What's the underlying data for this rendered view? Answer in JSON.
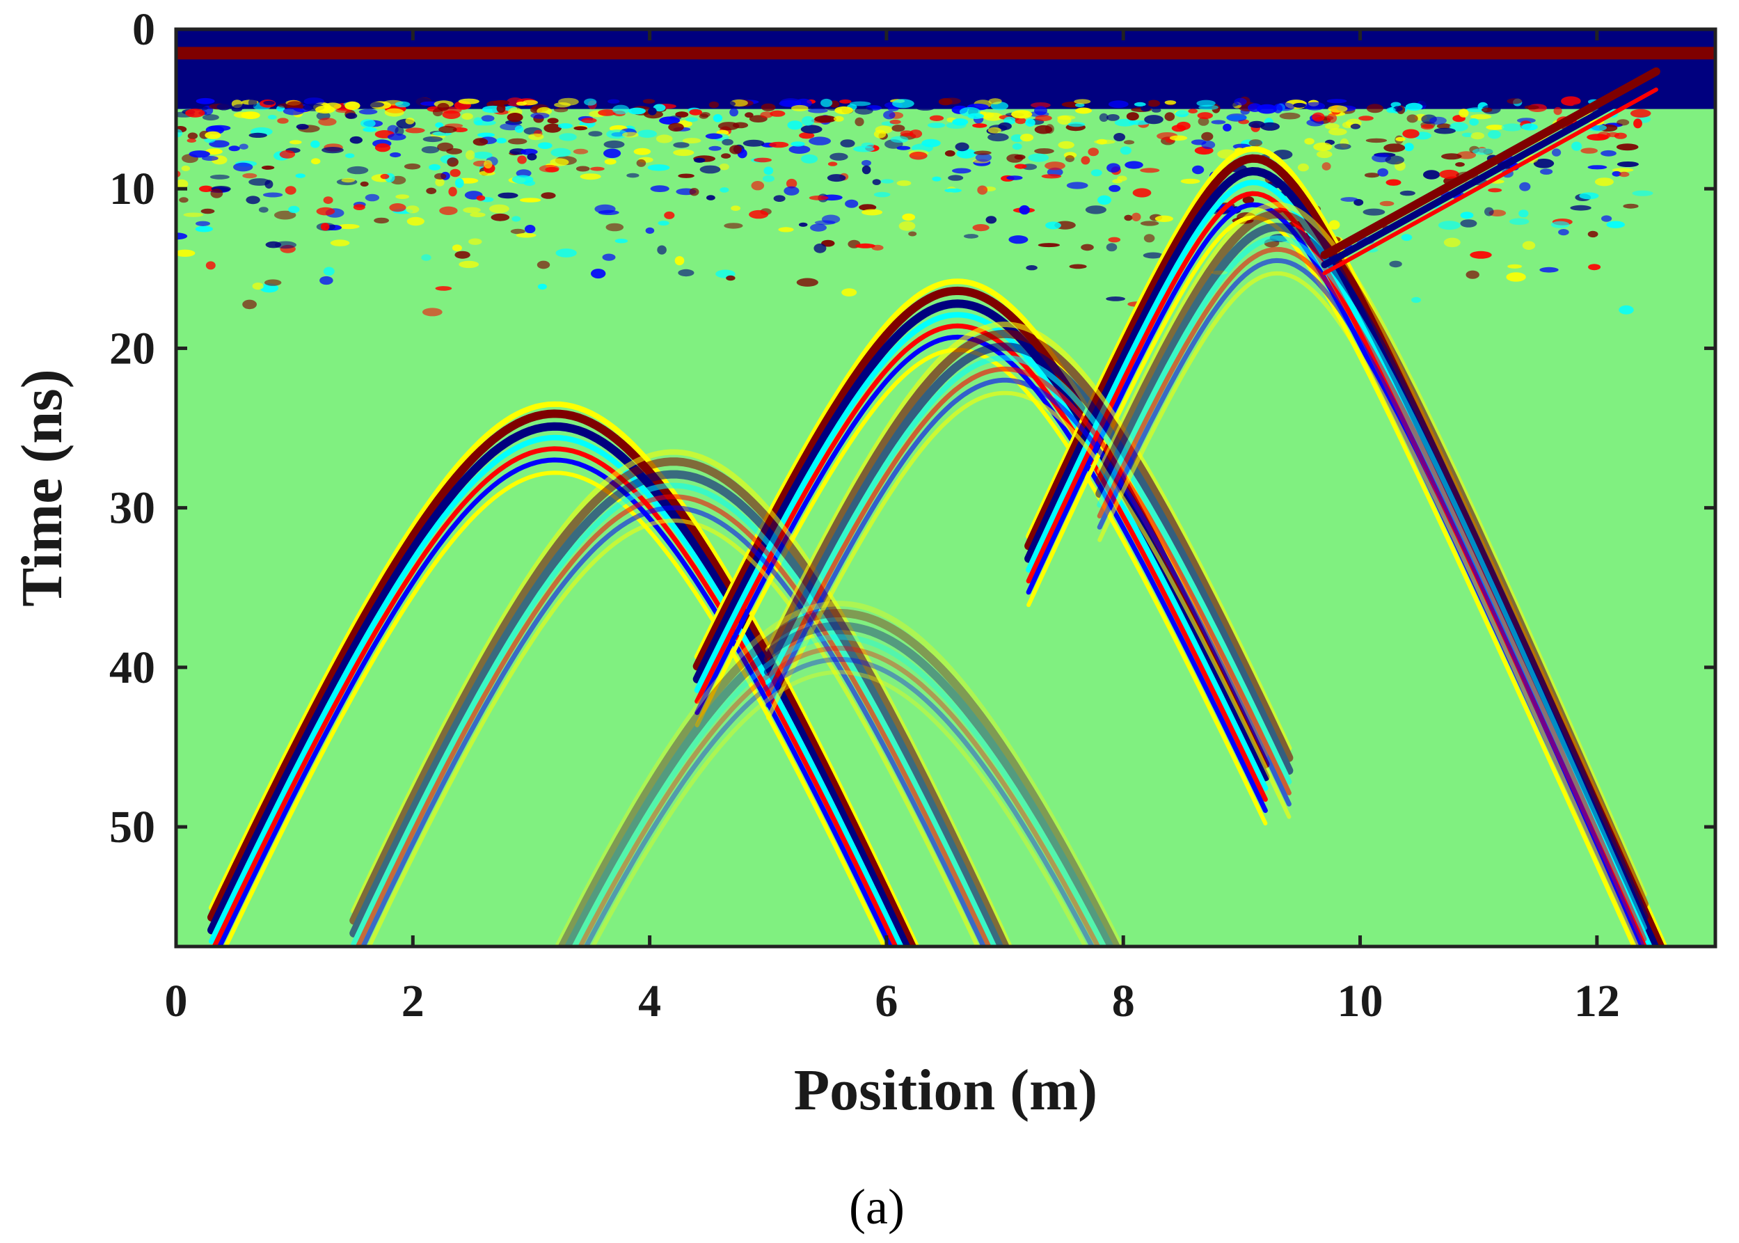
{
  "chart_data": {
    "type": "heatmap",
    "title": "",
    "caption": "(a)",
    "xlabel": "Position (m)",
    "ylabel": "Time (ns)",
    "xlim": [
      0,
      13
    ],
    "ylim": [
      0,
      57.5
    ],
    "y_reversed": true,
    "x_ticks": [
      0,
      2,
      4,
      6,
      8,
      10,
      12
    ],
    "y_ticks": [
      0,
      10,
      20,
      30,
      40,
      50
    ],
    "x_tick_labels": [
      "0",
      "2",
      "4",
      "6",
      "8",
      "10",
      "12"
    ],
    "y_tick_labels": [
      "0",
      "10",
      "20",
      "30",
      "40",
      "50"
    ],
    "colormap": "jet",
    "colormap_stops": [
      "#00007f",
      "#0000ff",
      "#00ffff",
      "#7fff7f",
      "#ffff00",
      "#ff0000",
      "#7f0000"
    ],
    "background_color": "#80f080",
    "grid": false,
    "legend": "none",
    "direct_wave": {
      "time_ns": 1.5,
      "x_start": 0,
      "x_end": 13
    },
    "hyperbolas": [
      {
        "x_apex": 3.2,
        "t_apex": 24.5,
        "velocity_m_per_ns": 0.115,
        "x_left": 0.3,
        "x_right": 6.5,
        "amplitude": 1.0
      },
      {
        "x_apex": 6.6,
        "t_apex": 16.8,
        "velocity_m_per_ns": 0.12,
        "x_left": 4.4,
        "x_right": 9.2,
        "amplitude": 1.0
      },
      {
        "x_apex": 9.1,
        "t_apex": 8.5,
        "velocity_m_per_ns": 0.12,
        "x_left": 7.2,
        "x_right": 12.6,
        "amplitude": 1.0
      },
      {
        "x_apex": 4.2,
        "t_apex": 27.5,
        "velocity_m_per_ns": 0.11,
        "x_left": 1.5,
        "x_right": 7.8,
        "amplitude": 0.55
      },
      {
        "x_apex": 7.0,
        "t_apex": 19.5,
        "velocity_m_per_ns": 0.115,
        "x_left": 5.0,
        "x_right": 9.4,
        "amplitude": 0.6
      },
      {
        "x_apex": 9.3,
        "t_apex": 12.0,
        "velocity_m_per_ns": 0.115,
        "x_left": 7.8,
        "x_right": 12.4,
        "amplitude": 0.55
      },
      {
        "x_apex": 5.6,
        "t_apex": 37.0,
        "velocity_m_per_ns": 0.105,
        "x_left": 3.0,
        "x_right": 8.0,
        "amplitude": 0.35
      }
    ],
    "diagonal_event": {
      "x0": 9.7,
      "t0": 14.5,
      "x1": 12.5,
      "t1": 3.0
    }
  }
}
